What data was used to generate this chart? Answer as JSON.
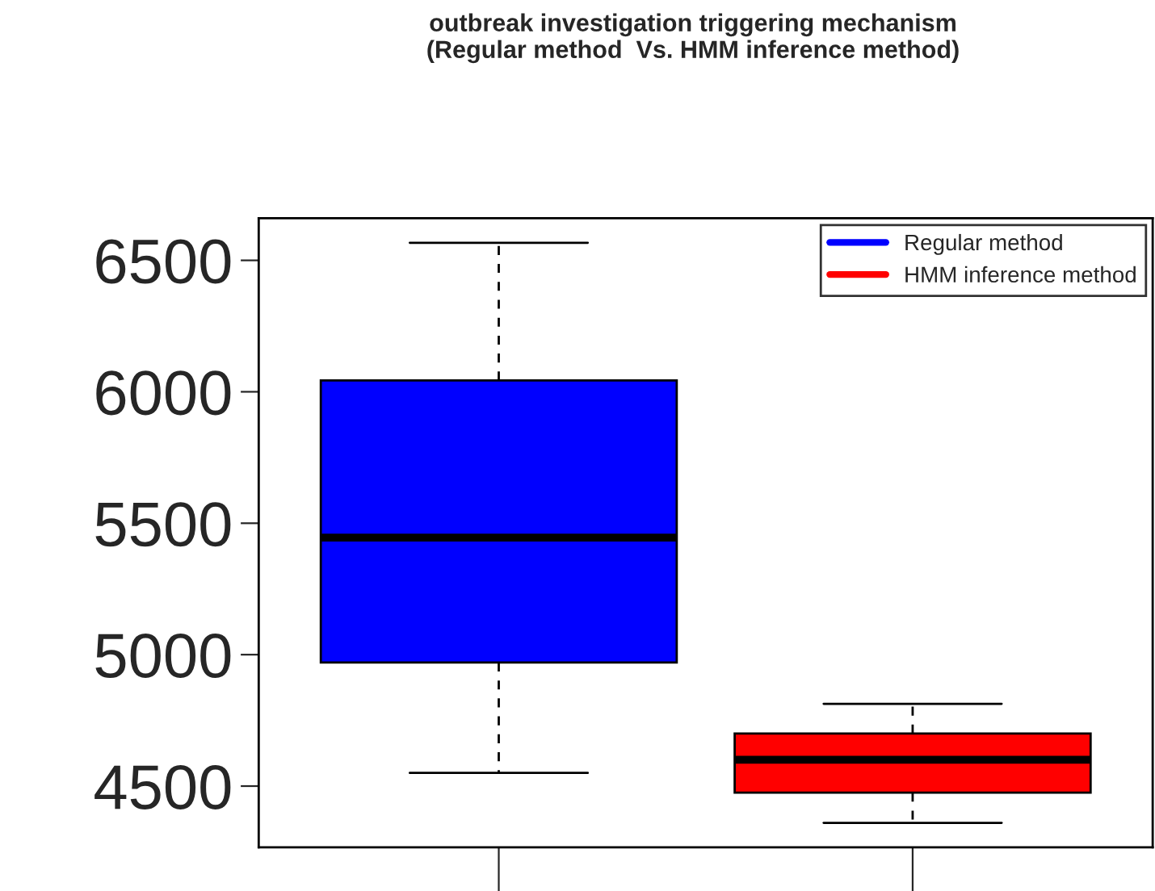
{
  "chart_data": {
    "type": "box",
    "title": "outbreak investigation triggering mechanism\n(Regular method  Vs. HMM inference method)",
    "categories": [
      null,
      null
    ],
    "series": [
      {
        "name": "Regular method",
        "color": "#0000ff",
        "boxes": [
          {
            "low": 4550,
            "q1": 4970,
            "median": 5445,
            "q3": 6043,
            "high": 6567
          },
          null
        ]
      },
      {
        "name": "HMM inference method",
        "color": "#ff0000",
        "boxes": [
          null,
          {
            "low": 4360,
            "q1": 4475,
            "median": 4600,
            "q3": 4700,
            "high": 4813
          }
        ]
      }
    ],
    "ylim": [
      4267,
      6660
    ],
    "yticks": [
      4500,
      5000,
      5500,
      6000,
      6500
    ],
    "legend": "top right",
    "grid": false
  }
}
